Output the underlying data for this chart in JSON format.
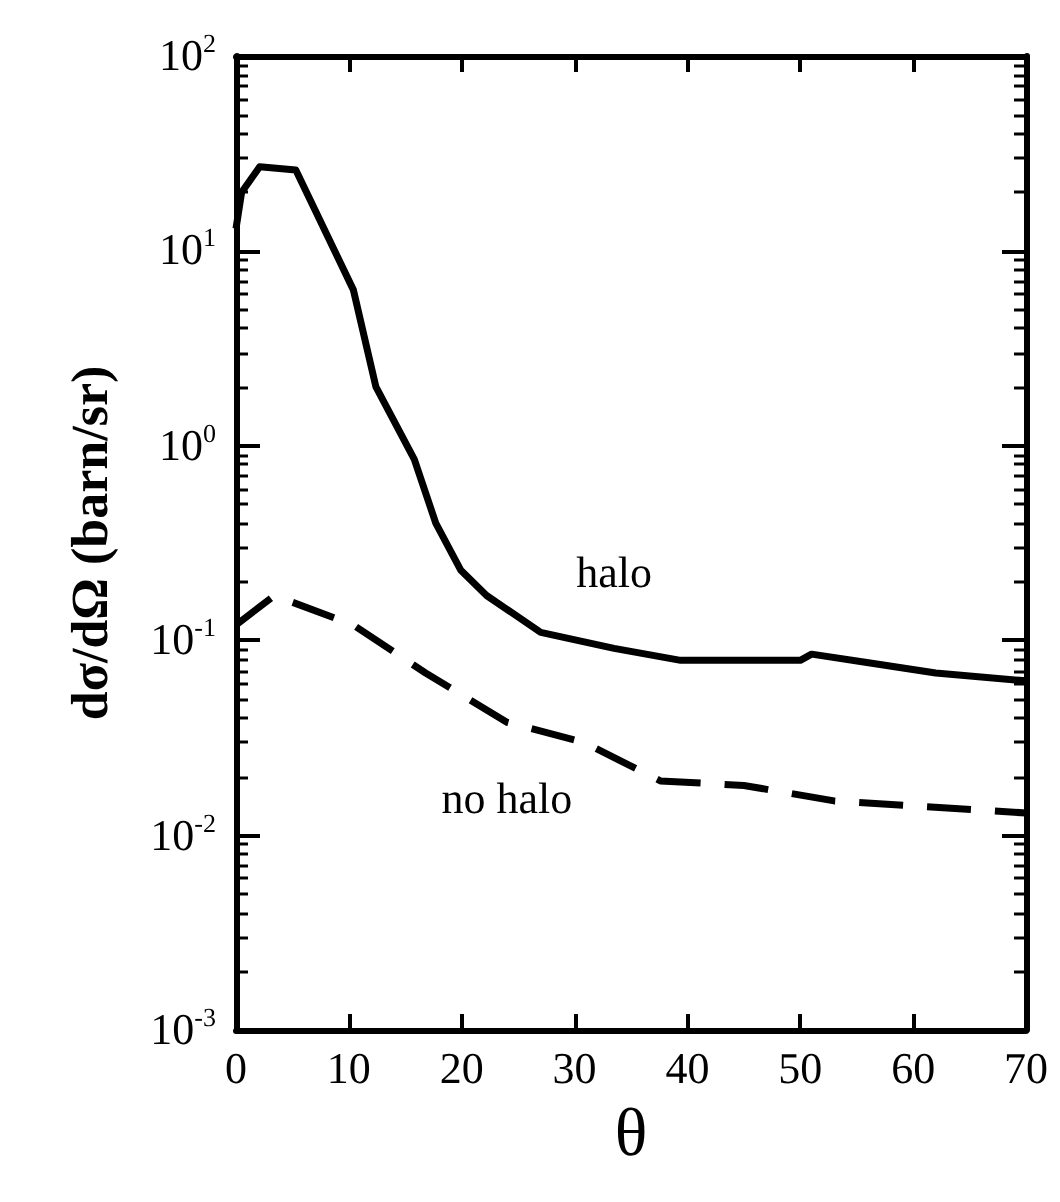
{
  "chart_data": {
    "type": "line",
    "xlabel": "θ",
    "ylabel": "dσ/dΩ (barn/sr)",
    "log": "y",
    "xlim": [
      0,
      70
    ],
    "xticks": [
      0,
      10,
      20,
      30,
      40,
      50,
      60,
      70
    ],
    "ylim": [
      0.001,
      100
    ],
    "yticks": [
      {
        "value": 0.001,
        "label": "10$^{-3}$"
      },
      {
        "value": 0.01,
        "label": "10$^{-2}$"
      },
      {
        "value": 0.1,
        "label": "10$^{-1}$"
      },
      {
        "value": 1,
        "label": "10$^{0}$"
      },
      {
        "value": 10,
        "label": "10$^{1}$"
      },
      {
        "value": 100,
        "label": "10$^{2}$"
      }
    ],
    "grid": false,
    "legend": false,
    "marker": "none",
    "series": [
      {
        "name": "halo",
        "color": "#000000",
        "line_style": "solid",
        "x": [
          0,
          0.5,
          2.1,
          5.3,
          10.4,
          12.4,
          15.8,
          17.7,
          19.9,
          22.2,
          27,
          33.5,
          39.4,
          50,
          51,
          55.9,
          62,
          70
        ],
        "values": [
          13,
          20,
          27,
          26,
          6.3,
          2.0,
          0.85,
          0.4,
          0.23,
          0.17,
          0.11,
          0.091,
          0.079,
          0.079,
          0.085,
          0.077,
          0.068,
          0.062
        ]
      },
      {
        "name": "no halo",
        "color": "#000000",
        "line_style": "dashed",
        "x": [
          0,
          3.4,
          10.4,
          16.8,
          24,
          30.8,
          37.6,
          45,
          53,
          70
        ],
        "values": [
          0.12,
          0.17,
          0.12,
          0.068,
          0.038,
          0.03,
          0.019,
          0.018,
          0.015,
          0.013
        ]
      }
    ]
  }
}
